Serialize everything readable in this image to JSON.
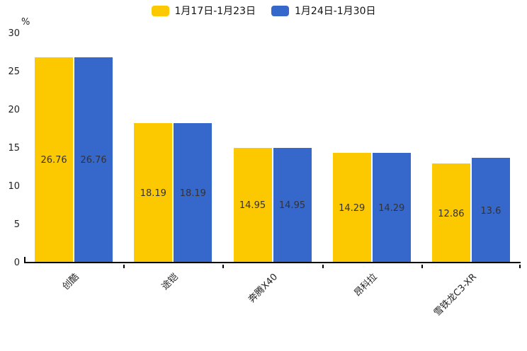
{
  "chart_data": {
    "type": "bar",
    "title": "",
    "unit": "%",
    "categories": [
      "创酷",
      "途铠",
      "奔腾X40",
      "昂科拉",
      "雪铁龙C3-XR"
    ],
    "series": [
      {
        "name": "1月17日-1月23日",
        "color": "#FCC800",
        "values": [
          26.76,
          18.19,
          14.95,
          14.29,
          12.86
        ]
      },
      {
        "name": "1月24日-1月30日",
        "color": "#3667CB",
        "values": [
          26.76,
          18.19,
          14.95,
          14.29,
          13.6
        ]
      }
    ],
    "ylim": [
      0,
      30
    ],
    "yticks": [
      0,
      5,
      10,
      15,
      20,
      25,
      30
    ],
    "legend_position": "top",
    "grid": false,
    "value_labels": true,
    "value_label_color": "#333333",
    "axis_color": "#000000",
    "xlabel_rotation": -45
  }
}
